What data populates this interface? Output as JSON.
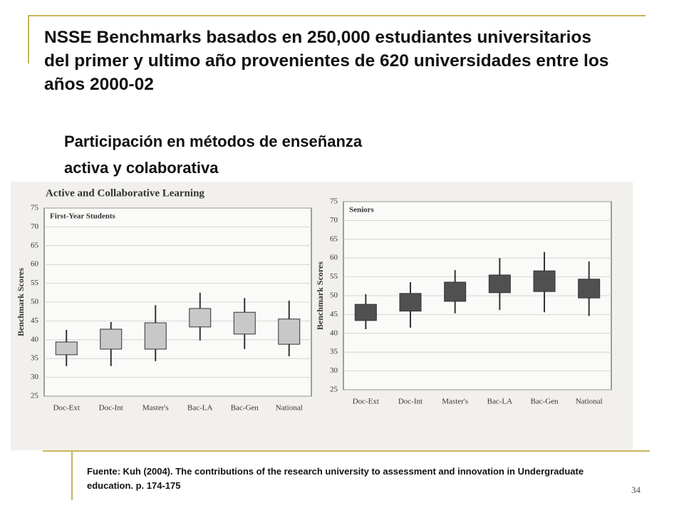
{
  "slide": {
    "title": "NSSE Benchmarks basados en 250,000 estudiantes universitarios del primer y ultimo año provenientes de 620 universidades entre los años 2000-02",
    "subtitle": "Participación en métodos de enseñanza activa y colaborativa",
    "source": "Fuente: Kuh (2004). The contributions of the research university to assessment and innovation in Undergraduate education. p. 174-175",
    "page_number": "34"
  },
  "figure_title": "Active and Collaborative Learning",
  "chart_data": [
    {
      "type": "boxplot",
      "title": "First-Year Students",
      "y_label": "Benchmark Scores",
      "categories": [
        "Doc-Ext",
        "Doc-Int",
        "Master's",
        "Bac-LA",
        "Bac-Gen",
        "National"
      ],
      "low": [
        33,
        33,
        34.3,
        39.8,
        37.5,
        35.6
      ],
      "q1": [
        36,
        37.5,
        37.5,
        43.4,
        41.5,
        38.8
      ],
      "q3": [
        39.4,
        42.8,
        44.5,
        48.3,
        47.3,
        45.5
      ],
      "high": [
        42.6,
        44.7,
        49.2,
        52.5,
        51.1,
        50.4
      ],
      "color": "#c8c8c8",
      "ylim": [
        25,
        75
      ],
      "yticks": [
        25,
        30,
        35,
        40,
        45,
        50,
        55,
        60,
        65,
        70,
        75
      ],
      "grid": true
    },
    {
      "type": "boxplot",
      "title": "Seniors",
      "y_label": "Benchmark Scores",
      "categories": [
        "Doc-Ext",
        "Doc-Int",
        "Master's",
        "Bac-LA",
        "Bac-Gen",
        "National"
      ],
      "low": [
        41.1,
        41.5,
        45.3,
        46.2,
        45.6,
        44.6
      ],
      "q1": [
        43.4,
        45.9,
        48.5,
        50.8,
        51.1,
        49.4
      ],
      "q3": [
        47.7,
        50.6,
        53.6,
        55.5,
        56.6,
        54.4
      ],
      "high": [
        50.4,
        53.6,
        56.8,
        60,
        61.6,
        59.1
      ],
      "color": "#505050",
      "ylim": [
        25,
        75
      ],
      "yticks": [
        25,
        30,
        35,
        40,
        45,
        50,
        55,
        60,
        65,
        70,
        75
      ],
      "grid": true
    }
  ]
}
